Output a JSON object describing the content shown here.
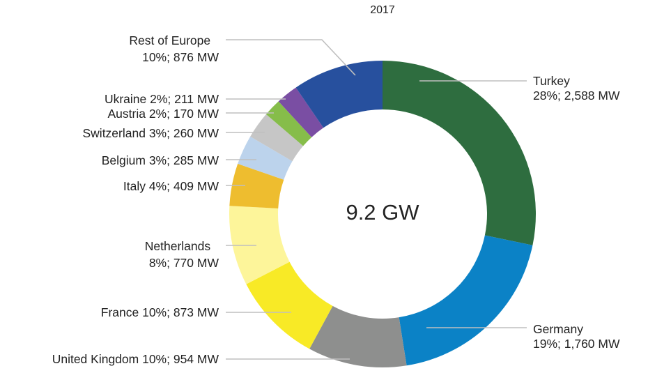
{
  "chart_data": {
    "type": "pie",
    "subtitle": "2017",
    "center_label": "9.2 GW",
    "slices": [
      {
        "name": "Turkey",
        "percent": "28%",
        "value": 2588,
        "value_label": "2,588 MW",
        "color": "#2e6d3f"
      },
      {
        "name": "Germany",
        "percent": "19%",
        "value": 1760,
        "value_label": "1,760 MW",
        "color": "#0b82c6"
      },
      {
        "name": "United Kingdom",
        "percent": "10%",
        "value": 954,
        "value_label": "954 MW",
        "color": "#8e8f8e"
      },
      {
        "name": "France",
        "percent": "10%",
        "value": 873,
        "value_label": "873 MW",
        "color": "#f8ea26"
      },
      {
        "name": "Netherlands",
        "percent": "8%",
        "value": 770,
        "value_label": "770 MW",
        "color": "#fdf59a"
      },
      {
        "name": "Italy",
        "percent": "4%",
        "value": 409,
        "value_label": "409 MW",
        "color": "#eebd2f"
      },
      {
        "name": "Belgium",
        "percent": "3%",
        "value": 285,
        "value_label": "285 MW",
        "color": "#bcd3ec"
      },
      {
        "name": "Switzerland",
        "percent": "3%",
        "value": 260,
        "value_label": "260 MW",
        "color": "#c6c6c6"
      },
      {
        "name": "Austria",
        "percent": "2%",
        "value": 170,
        "value_label": "170 MW",
        "color": "#86bd4a"
      },
      {
        "name": "Ukraine",
        "percent": "2%",
        "value": 211,
        "value_label": "211 MW",
        "color": "#7a4ea3"
      },
      {
        "name": "Rest of Europe",
        "percent": "10%",
        "value": 876,
        "value_label": "876 MW",
        "color": "#27509e"
      }
    ]
  },
  "labels": {
    "turkey": {
      "line1": "Turkey",
      "line2": "28%; 2,588 MW"
    },
    "germany": {
      "line1": "Germany",
      "line2": "19%; 1,760 MW"
    },
    "united_kingdom": "United Kingdom 10%; 954 MW",
    "france": "France 10%; 873 MW",
    "netherlands": {
      "line1": "Netherlands",
      "line2": "8%; 770 MW"
    },
    "italy": "Italy 4%; 409 MW",
    "belgium": "Belgium 3%; 285 MW",
    "switzerland": "Switzerland 3%; 260 MW",
    "austria": "Austria 2%; 170 MW",
    "ukraine": "Ukraine 2%; 211 MW",
    "rest_of_europe": {
      "line1": "Rest of Europe",
      "line2": "10%; 876 MW"
    }
  }
}
